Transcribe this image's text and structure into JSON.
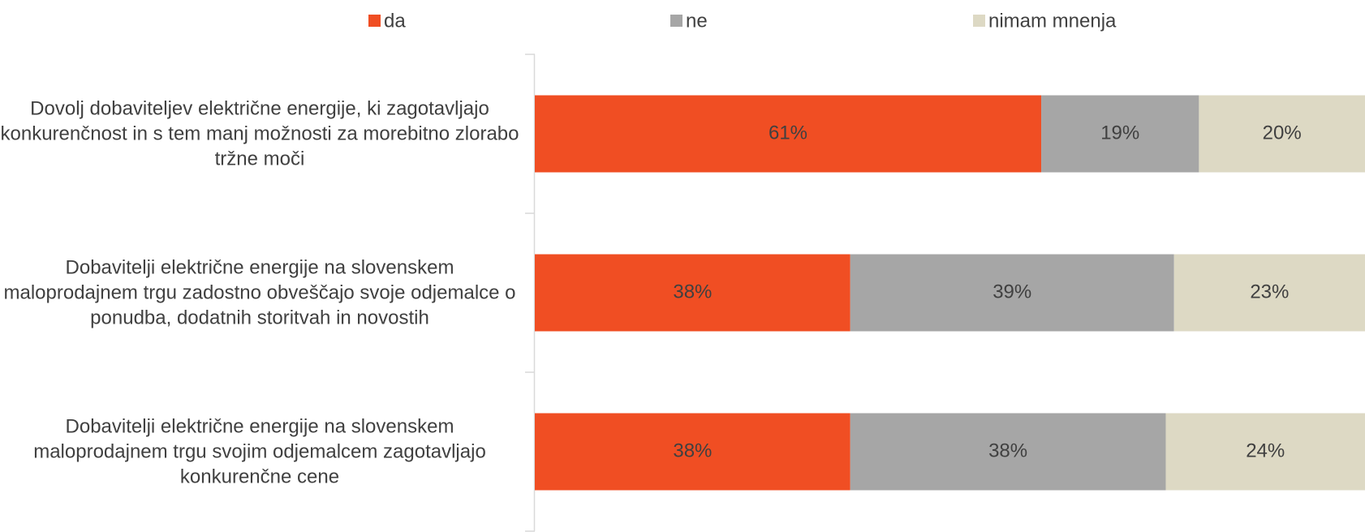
{
  "chart_data": {
    "type": "stacked-bar-horizontal",
    "categories": [
      "Dovolj dobaviteljev električne energije, ki zagotavljajo konkurenčnost in s tem manj možnosti za morebitno zlorabo tržne moči",
      "Dobavitelji električne energije na slovenskem maloprodajnem trgu zadostno obveščajo svoje odjemalce o ponudba, dodatnih storitvah in novostih",
      "Dobavitelji električne energije na slovenskem maloprodajnem trgu svojim odjemalcem zagotavljajo konkurenčne cene"
    ],
    "series": [
      {
        "name": "da",
        "color": "#f04e23",
        "values": [
          61,
          38,
          38
        ],
        "value_labels": [
          "61%",
          "38%",
          "38%"
        ]
      },
      {
        "name": "ne",
        "color": "#a6a6a6",
        "values": [
          19,
          39,
          38
        ],
        "value_labels": [
          "19%",
          "39%",
          "38%"
        ]
      },
      {
        "name": "nimam mnenja",
        "color": "#ddd9c4",
        "values": [
          20,
          23,
          24
        ],
        "value_labels": [
          "20%",
          "23%",
          "24%"
        ]
      }
    ],
    "xlim": [
      0,
      100
    ],
    "legend": "top"
  }
}
